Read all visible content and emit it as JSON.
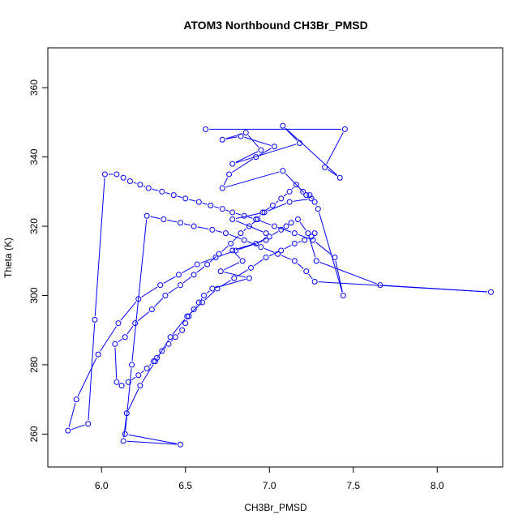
{
  "chart_data": {
    "type": "line",
    "title": "ATOM3 Northbound CH3Br_PMSD",
    "xlabel": "CH3Br_PMSD",
    "ylabel": "Theta (K)",
    "xlim": [
      5.68,
      8.39
    ],
    "ylim": [
      250.5,
      371.5
    ],
    "x_ticks": [
      6.0,
      6.5,
      7.0,
      7.5,
      8.0
    ],
    "x_tick_labels": [
      "6.0",
      "6.5",
      "7.0",
      "7.5",
      "8.0"
    ],
    "y_ticks": [
      260,
      280,
      300,
      320,
      340,
      360
    ],
    "y_tick_labels": [
      "260",
      "280",
      "300",
      "320",
      "340",
      "360"
    ],
    "grid": false,
    "legend": "none",
    "series": [
      {
        "color": "#0000ff",
        "marker": "open-circle",
        "x": [
          6.62,
          7.45,
          7.33,
          7.42,
          7.08,
          7.18,
          6.78,
          6.95,
          6.86,
          6.72,
          6.83,
          7.03,
          6.92,
          6.76,
          6.72,
          7.08,
          7.22,
          7.25,
          7.12,
          6.97,
          6.78,
          6.98,
          6.98,
          6.78,
          6.84,
          6.71,
          6.88,
          6.66,
          6.61,
          6.58,
          6.55,
          6.52,
          6.5,
          6.48,
          6.44,
          6.4,
          6.36,
          6.33,
          6.31,
          6.27,
          6.22,
          6.16,
          6.12,
          6.09,
          6.08,
          6.14,
          6.2,
          6.3,
          6.38,
          6.47,
          6.55,
          6.63,
          6.7,
          6.77,
          6.83,
          6.88,
          6.93,
          6.96,
          7.02,
          7.07,
          7.12,
          7.16,
          7.2,
          7.24,
          7.27,
          7.29,
          7.44,
          7.39,
          7.26,
          7.15,
          7.03,
          6.92,
          6.85,
          6.78,
          6.72,
          6.65,
          6.58,
          6.5,
          6.43,
          6.36,
          6.28,
          6.23,
          6.17,
          6.13,
          6.09,
          6.02,
          5.96,
          5.92,
          5.8,
          5.85,
          5.98,
          6.1,
          6.22,
          6.35,
          6.46,
          6.57,
          6.68,
          6.8,
          6.92,
          7.0,
          7.07,
          7.1,
          7.13,
          7.17,
          7.23,
          7.28,
          7.66,
          8.32,
          7.27,
          7.22,
          7.15,
          7.05,
          6.95,
          6.85,
          6.74,
          6.66,
          6.55,
          6.47,
          6.37,
          6.27,
          6.18,
          6.14,
          6.47,
          6.13,
          6.15,
          6.23,
          6.32,
          6.41,
          6.51,
          6.6,
          6.69,
          6.79,
          6.89,
          6.98,
          7.07,
          7.15,
          7.21,
          7.25,
          7.27
        ],
        "y": [
          348,
          348,
          337,
          334,
          349,
          344,
          338,
          342,
          347,
          345,
          346,
          343,
          340,
          335,
          331,
          336,
          329,
          328,
          327,
          324,
          322,
          318,
          316,
          313,
          310,
          307,
          305,
          302,
          300,
          298,
          296,
          294,
          292,
          290,
          288,
          286,
          284,
          282,
          281,
          279,
          277,
          275,
          274,
          275,
          286,
          288,
          292,
          296,
          300,
          303,
          306,
          309,
          312,
          315,
          318,
          320,
          322,
          324,
          326,
          328,
          330,
          332,
          330,
          329,
          327,
          325,
          300,
          311,
          316,
          318,
          320,
          322,
          323,
          324,
          325,
          326,
          327,
          328,
          329,
          330,
          331,
          332,
          333,
          334,
          335,
          335,
          293,
          263,
          261,
          270,
          283,
          292,
          299,
          303,
          306,
          309,
          311,
          313,
          315,
          317,
          319,
          320,
          321,
          322,
          318,
          310,
          303,
          301,
          304,
          307,
          310,
          312,
          314,
          316,
          318,
          319,
          320,
          321,
          322,
          323,
          280,
          260,
          257,
          258,
          266,
          274,
          281,
          288,
          294,
          298,
          302,
          305,
          308,
          311,
          313,
          315,
          316,
          317,
          318
        ]
      }
    ]
  }
}
